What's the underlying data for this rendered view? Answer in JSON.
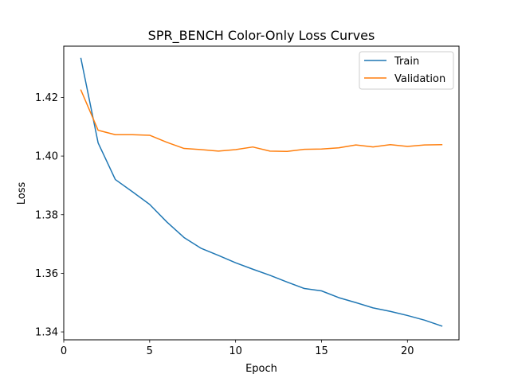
{
  "chart_data": {
    "type": "line",
    "title": "SPR_BENCH Color-Only Loss Curves",
    "xlabel": "Epoch",
    "ylabel": "Loss",
    "xlim": [
      0,
      23
    ],
    "ylim": [
      1.3373,
      1.4375
    ],
    "xticks": [
      0,
      5,
      10,
      15,
      20
    ],
    "yticks": [
      1.34,
      1.36,
      1.38,
      1.4,
      1.42
    ],
    "ytick_labels": [
      "1.34",
      "1.36",
      "1.38",
      "1.40",
      "1.42"
    ],
    "grid": false,
    "legend_position": "top-right",
    "x": [
      1,
      2,
      3,
      4,
      5,
      6,
      7,
      8,
      9,
      10,
      11,
      12,
      13,
      14,
      15,
      16,
      17,
      18,
      19,
      20,
      21,
      22
    ],
    "series": [
      {
        "name": "Train",
        "color": "#1f77b4",
        "values": [
          1.4333,
          1.4045,
          1.392,
          1.3878,
          1.3835,
          1.3775,
          1.3722,
          1.3685,
          1.3661,
          1.3636,
          1.3614,
          1.3593,
          1.357,
          1.3548,
          1.354,
          1.3517,
          1.35,
          1.3482,
          1.347,
          1.3456,
          1.344,
          1.342
        ]
      },
      {
        "name": "Validation",
        "color": "#ff7f0e",
        "values": [
          1.4225,
          1.4088,
          1.4073,
          1.4073,
          1.4071,
          1.4047,
          1.4026,
          1.4022,
          1.4017,
          1.4022,
          1.4031,
          1.4017,
          1.4016,
          1.4023,
          1.4024,
          1.4028,
          1.4038,
          1.4031,
          1.4039,
          1.4033,
          1.4038,
          1.4039
        ]
      }
    ]
  }
}
